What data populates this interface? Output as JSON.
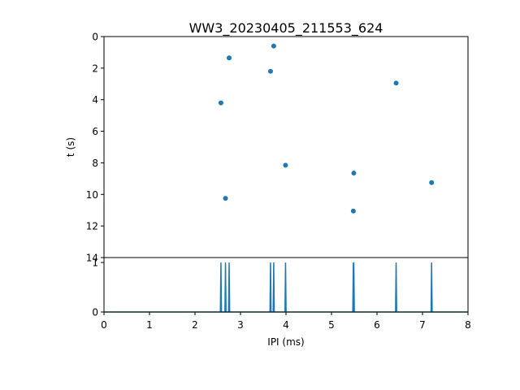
{
  "chart_data": [
    {
      "type": "scatter",
      "title": "WW3_20230405_211553_624",
      "xlabel": "",
      "ylabel": "t (s)",
      "xlim": [
        0,
        8
      ],
      "ylim": [
        0,
        14
      ],
      "y_inverted": true,
      "yticks": [
        "0",
        "2",
        "4",
        "6",
        "8",
        "10",
        "12",
        "14"
      ],
      "grid": false,
      "marker_color": "#1f77b4",
      "points": [
        {
          "x": 2.75,
          "y": 1.35
        },
        {
          "x": 3.73,
          "y": 0.6
        },
        {
          "x": 3.66,
          "y": 2.2
        },
        {
          "x": 2.57,
          "y": 4.2
        },
        {
          "x": 3.99,
          "y": 8.15
        },
        {
          "x": 2.67,
          "y": 10.25
        },
        {
          "x": 5.49,
          "y": 8.65
        },
        {
          "x": 5.48,
          "y": 11.05
        },
        {
          "x": 6.42,
          "y": 2.95
        },
        {
          "x": 7.2,
          "y": 9.25
        }
      ]
    },
    {
      "type": "line",
      "xlabel": "IPI (ms)",
      "ylabel": "",
      "xlim": [
        0,
        8
      ],
      "ylim": [
        0,
        1.1
      ],
      "xticks": [
        "0",
        "1",
        "2",
        "3",
        "4",
        "5",
        "6",
        "7",
        "8"
      ],
      "yticks": [
        "0",
        "1"
      ],
      "grid": false,
      "line_color": "#1f77b4",
      "spike_x": [
        2.57,
        2.67,
        2.75,
        3.66,
        3.73,
        3.99,
        5.48,
        5.49,
        6.42,
        7.2
      ],
      "baseline": 0,
      "spike_height": 1
    }
  ]
}
